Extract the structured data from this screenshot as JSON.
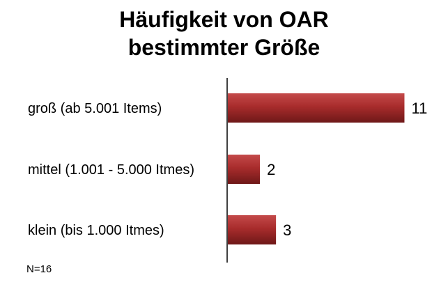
{
  "chart_data": {
    "type": "bar",
    "orientation": "horizontal",
    "title_lines": [
      "Häufigkeit von OAR",
      "bestimmter Größe"
    ],
    "categories": [
      "groß (ab 5.001 Items)",
      "mittel (1.001 - 5.000 Itmes)",
      "klein (bis 1.000 Itmes)"
    ],
    "values": [
      11,
      2,
      3
    ],
    "data_labels": [
      "11",
      "2",
      "3"
    ],
    "xlim": [
      0,
      11.5
    ],
    "grid": false,
    "legend": "none",
    "bar_color": "#a52a2a",
    "note": "N=16"
  }
}
